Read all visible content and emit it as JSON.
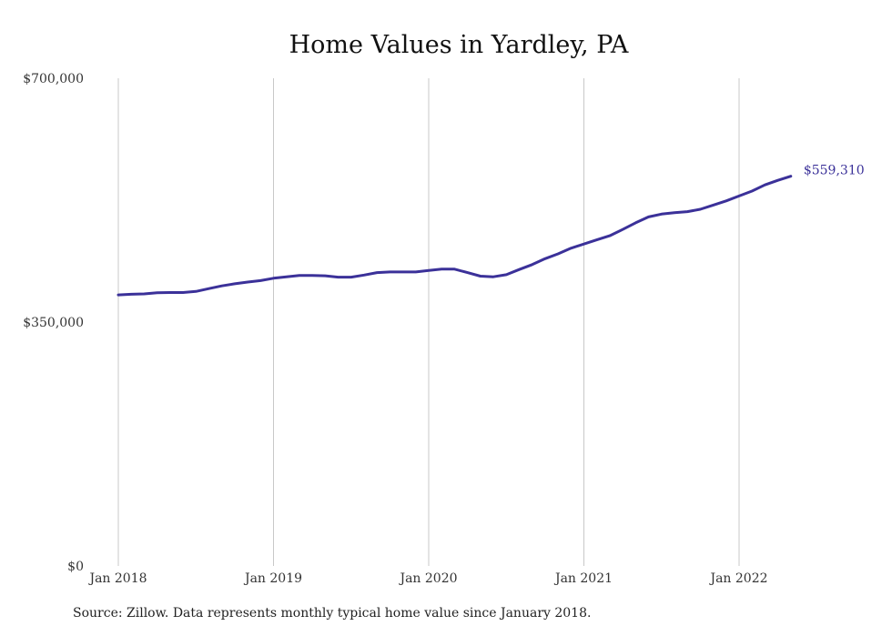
{
  "chart_data": {
    "type": "line",
    "title": "Home Values in Yardley, PA",
    "xlabel": "",
    "ylabel": "",
    "ylim": [
      0,
      700000
    ],
    "y_ticks": [
      {
        "value": 0,
        "label": "$0"
      },
      {
        "value": 350000,
        "label": "$350,000"
      },
      {
        "value": 700000,
        "label": "$700,000"
      }
    ],
    "x_ticks": [
      {
        "value": "2018-01",
        "label": "Jan 2018"
      },
      {
        "value": "2019-01",
        "label": "Jan 2019"
      },
      {
        "value": "2020-01",
        "label": "Jan 2020"
      },
      {
        "value": "2021-01",
        "label": "Jan 2021"
      },
      {
        "value": "2022-01",
        "label": "Jan 2022"
      }
    ],
    "grid": "vertical",
    "line_color": "#3b3199",
    "end_label": "$559,310",
    "series": [
      {
        "x": [
          "2018-01",
          "2018-02",
          "2018-03",
          "2018-04",
          "2018-05",
          "2018-06",
          "2018-07",
          "2018-08",
          "2018-09",
          "2018-10",
          "2018-11",
          "2018-12",
          "2019-01",
          "2019-02",
          "2019-03",
          "2019-04",
          "2019-05",
          "2019-06",
          "2019-07",
          "2019-08",
          "2019-09",
          "2019-10",
          "2019-11",
          "2019-12",
          "2020-01",
          "2020-02",
          "2020-03",
          "2020-04",
          "2020-05",
          "2020-06",
          "2020-07",
          "2020-08",
          "2020-09",
          "2020-10",
          "2020-11",
          "2020-12",
          "2021-01",
          "2021-02",
          "2021-03",
          "2021-04",
          "2021-05",
          "2021-06",
          "2021-07",
          "2021-08",
          "2021-09",
          "2021-10",
          "2021-11",
          "2021-12",
          "2022-01",
          "2022-02",
          "2022-03",
          "2022-04",
          "2022-05"
        ],
        "values": [
          389000,
          390000,
          390500,
          392000,
          392500,
          392500,
          394000,
          398000,
          402000,
          405000,
          407500,
          409500,
          413000,
          415000,
          417000,
          417000,
          416500,
          414500,
          414500,
          417500,
          421000,
          422000,
          422000,
          422000,
          424000,
          426000,
          426000,
          421000,
          416000,
          415000,
          418000,
          425500,
          432500,
          441000,
          448000,
          456000,
          462000,
          468000,
          474000,
          483000,
          492500,
          501000,
          505000,
          507000,
          508500,
          512000,
          518000,
          524000,
          531000,
          538000,
          547000,
          553500,
          559310
        ]
      }
    ]
  },
  "source_note": "Source: Zillow. Data represents monthly typical home value since January 2018."
}
